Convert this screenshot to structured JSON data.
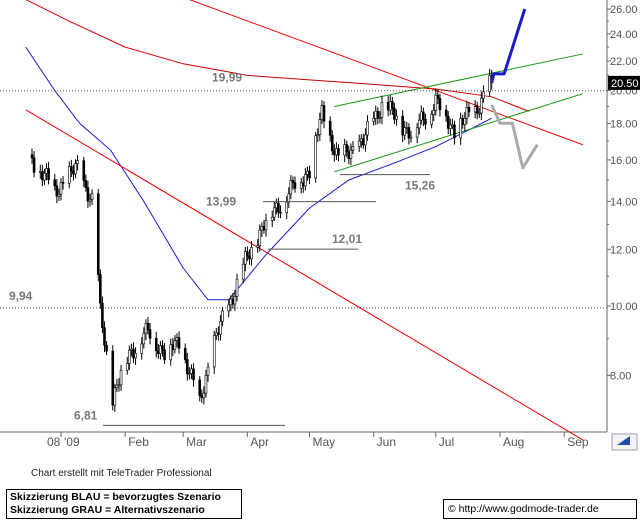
{
  "chart_data": {
    "type": "candlestick",
    "y_scale": "log",
    "ylim": [
      6.5,
      26.5
    ],
    "y_ticks": [
      "8.00",
      "10.00",
      "12.00",
      "14.00",
      "16.00",
      "18.00",
      "20.00",
      "22.00",
      "24.00",
      "26.00"
    ],
    "x_labels": [
      "08",
      "'09",
      "Feb",
      "Mar",
      "Apr",
      "May",
      "Jun",
      "Jul",
      "Aug",
      "Sep"
    ],
    "last_price": "20.50",
    "colors": {
      "price": "#000000",
      "ma_red": "#cc0000",
      "ma_blue": "#1a1acc",
      "channel": "#119911",
      "trend_red": "#ee0000",
      "scenario_blue": "#1a1acc",
      "scenario_grey": "#aaaaaa",
      "level": "#555555",
      "last_box": "#000000"
    },
    "horizontal_levels": [
      {
        "label": "19,99",
        "value": 19.99
      },
      {
        "label": "9,94",
        "value": 9.94
      }
    ],
    "annotations": [
      {
        "label": "13,99",
        "value": 13.99
      },
      {
        "label": "12,01",
        "value": 12.01
      },
      {
        "label": "15,26",
        "value": 15.26
      },
      {
        "label": "6,81",
        "value": 6.81
      }
    ],
    "price_series": [
      {
        "date": "2008-12-18",
        "close": 16.0
      },
      {
        "date": "2008-12-29",
        "close": 14.5
      },
      {
        "date": "2009-01-09",
        "close": 15.6
      },
      {
        "date": "2009-01-16",
        "close": 14.0
      },
      {
        "date": "2009-01-20",
        "close": 9.8
      },
      {
        "date": "2009-01-26",
        "close": 7.4
      },
      {
        "date": "2009-02-03",
        "close": 8.6
      },
      {
        "date": "2009-02-12",
        "close": 9.2
      },
      {
        "date": "2009-02-20",
        "close": 8.6
      },
      {
        "date": "2009-02-27",
        "close": 8.9
      },
      {
        "date": "2009-03-09",
        "close": 7.3
      },
      {
        "date": "2009-03-16",
        "close": 8.9
      },
      {
        "date": "2009-03-23",
        "close": 10.0
      },
      {
        "date": "2009-03-31",
        "close": 11.5
      },
      {
        "date": "2009-04-09",
        "close": 13.0
      },
      {
        "date": "2009-04-21",
        "close": 14.4
      },
      {
        "date": "2009-05-01",
        "close": 15.5
      },
      {
        "date": "2009-05-07",
        "close": 18.5
      },
      {
        "date": "2009-05-15",
        "close": 16.0
      },
      {
        "date": "2009-05-27",
        "close": 17.0
      },
      {
        "date": "2009-06-05",
        "close": 19.2
      },
      {
        "date": "2009-06-19",
        "close": 17.4
      },
      {
        "date": "2009-07-01",
        "close": 19.3
      },
      {
        "date": "2009-07-10",
        "close": 17.6
      },
      {
        "date": "2009-07-20",
        "close": 18.8
      },
      {
        "date": "2009-07-28",
        "close": 20.5
      }
    ],
    "sma_red_long": [
      {
        "date": "2008-12-15",
        "value": 26.8
      },
      {
        "date": "2009-01-05",
        "value": 25.0
      },
      {
        "date": "2009-02-01",
        "value": 23.0
      },
      {
        "date": "2009-03-01",
        "value": 21.8
      },
      {
        "date": "2009-04-01",
        "value": 21.0
      },
      {
        "date": "2009-05-01",
        "value": 20.7
      },
      {
        "date": "2009-06-01",
        "value": 20.4
      },
      {
        "date": "2009-07-01",
        "value": 20.1
      },
      {
        "date": "2009-07-28",
        "value": 19.6
      },
      {
        "date": "2009-08-15",
        "value": 18.7
      }
    ],
    "sma_blue": [
      {
        "date": "2008-12-15",
        "value": 23.0
      },
      {
        "date": "2008-12-29",
        "value": 20.0
      },
      {
        "date": "2009-01-10",
        "value": 18.0
      },
      {
        "date": "2009-01-25",
        "value": 16.5
      },
      {
        "date": "2009-02-10",
        "value": 14.0
      },
      {
        "date": "2009-03-01",
        "value": 11.3
      },
      {
        "date": "2009-03-13",
        "value": 10.2
      },
      {
        "date": "2009-03-23",
        "value": 10.2
      },
      {
        "date": "2009-04-10",
        "value": 11.8
      },
      {
        "date": "2009-05-01",
        "value": 13.7
      },
      {
        "date": "2009-05-20",
        "value": 15.0
      },
      {
        "date": "2009-06-10",
        "value": 15.8
      },
      {
        "date": "2009-07-01",
        "value": 16.7
      },
      {
        "date": "2009-07-20",
        "value": 17.8
      },
      {
        "date": "2009-07-28",
        "value": 18.3
      }
    ],
    "trendlines_red": [
      {
        "from": {
          "date": "2008-12-15",
          "value": 18.8
        },
        "to": {
          "date": "2009-09-10",
          "value": 6.5
        }
      },
      {
        "from": {
          "date": "2009-03-01",
          "value": 27.0
        },
        "to": {
          "date": "2009-09-10",
          "value": 16.8
        }
      }
    ],
    "channel_green": [
      {
        "from": {
          "date": "2009-05-13",
          "value": 19.0
        },
        "to": {
          "date": "2009-09-10",
          "value": 22.5
        }
      },
      {
        "from": {
          "date": "2009-05-13",
          "value": 15.4
        },
        "to": {
          "date": "2009-09-10",
          "value": 19.8
        }
      }
    ],
    "scenario_blue": [
      {
        "date": "2009-07-28",
        "value": 20.5
      },
      {
        "date": "2009-07-29",
        "value": 21.1
      },
      {
        "date": "2009-08-03",
        "value": 21.1
      },
      {
        "date": "2009-08-13",
        "value": 26.0
      }
    ],
    "scenario_grey": [
      {
        "date": "2009-07-28",
        "value": 19.1
      },
      {
        "date": "2009-08-01",
        "value": 18.0
      },
      {
        "date": "2009-08-07",
        "value": 18.0
      },
      {
        "date": "2009-08-12",
        "value": 15.6
      },
      {
        "date": "2009-08-19",
        "value": 16.8
      }
    ]
  },
  "footer": {
    "credit": "Chart erstellt mit TeleTrader Professional",
    "legend_blue": "Skizzierung BLAU = bevorzugtes Szenario",
    "legend_grey": "Skizzierung GRAU = Alternativszenario",
    "url": "© http://www.godmode-trader.de"
  }
}
